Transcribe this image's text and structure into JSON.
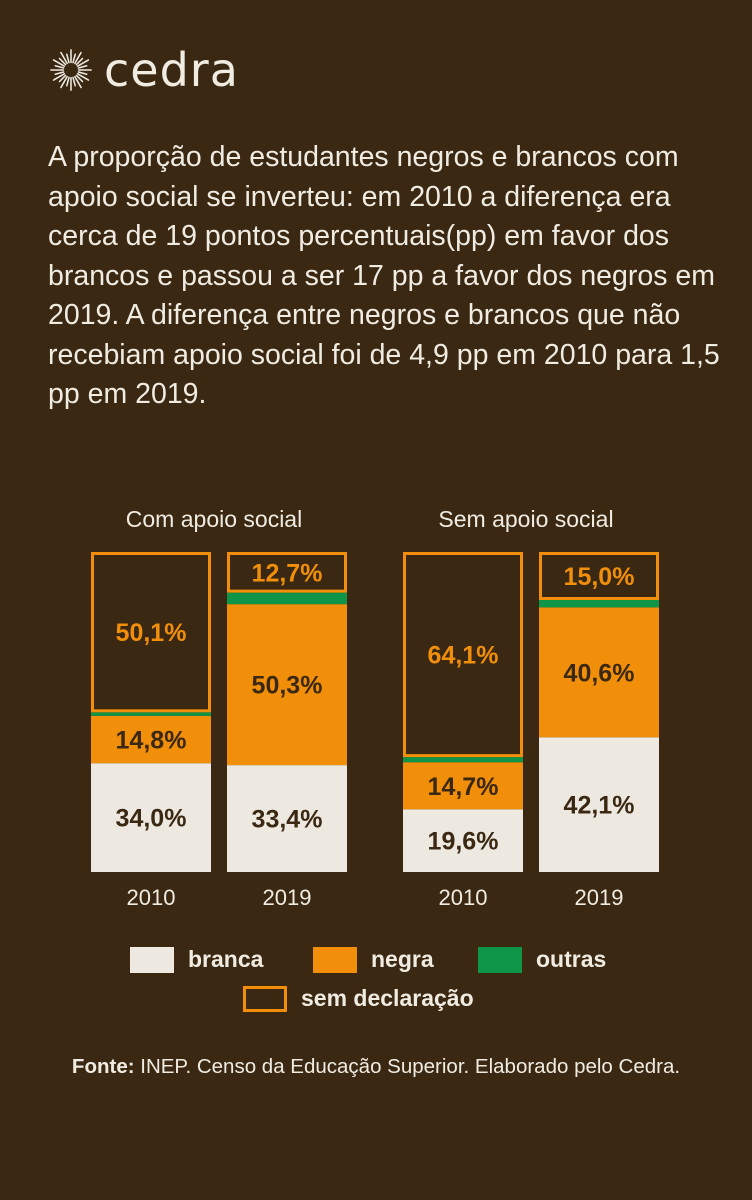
{
  "brand": {
    "name": "cedra",
    "logo_icon": "sun-burst-icon"
  },
  "lead_text": "A proporção de estudantes negros e brancos com apoio social se inverteu: em 2010 a diferença era cerca de 19 pontos percentuais(pp) em favor dos brancos e passou a ser 17 pp a favor dos negros em 2019. A diferença entre negros e brancos que não recebiam apoio social foi de 4,9 pp em 2010 para 1,5 pp em 2019.",
  "colors": {
    "background": "#3a2813",
    "branca": "#ede9e0",
    "negra": "#f18f0a",
    "outras": "#0f9547",
    "sem_declaracao": "#f18f0a",
    "text_light": "#f0ece2",
    "text_dark": "#3a2813"
  },
  "legend": {
    "branca": "branca",
    "negra": "negra",
    "outras": "outras",
    "sem_declaracao": "sem declaração"
  },
  "source": {
    "label": "Fonte:",
    "text": " INEP. Censo da Educação Superior. Elaborado pelo Cedra."
  },
  "chart_data": [
    {
      "type": "bar",
      "stacked": true,
      "title": "Com apoio social",
      "categories": [
        "2010",
        "2019"
      ],
      "series": [
        {
          "name": "branca",
          "values": [
            34.0,
            33.4
          ],
          "labels": [
            "34,0%",
            "33,4%"
          ]
        },
        {
          "name": "negra",
          "values": [
            14.8,
            50.3
          ],
          "labels": [
            "14,8%",
            "50,3%"
          ]
        },
        {
          "name": "outras",
          "values": [
            1.1,
            3.6
          ],
          "labels": [
            "",
            ""
          ]
        },
        {
          "name": "sem declaração",
          "values": [
            50.1,
            12.7
          ],
          "labels": [
            "50,1%",
            "12,7%"
          ]
        }
      ]
    },
    {
      "type": "bar",
      "stacked": true,
      "title": "Sem apoio social",
      "categories": [
        "2010",
        "2019"
      ],
      "series": [
        {
          "name": "branca",
          "values": [
            19.6,
            42.1
          ],
          "labels": [
            "19,6%",
            "42,1%"
          ]
        },
        {
          "name": "negra",
          "values": [
            14.7,
            40.6
          ],
          "labels": [
            "14,7%",
            "40,6%"
          ]
        },
        {
          "name": "outras",
          "values": [
            1.6,
            2.3
          ],
          "labels": [
            "",
            ""
          ]
        },
        {
          "name": "sem declaração",
          "values": [
            64.1,
            15.0
          ],
          "labels": [
            "64,1%",
            "15,0%"
          ]
        }
      ]
    }
  ]
}
